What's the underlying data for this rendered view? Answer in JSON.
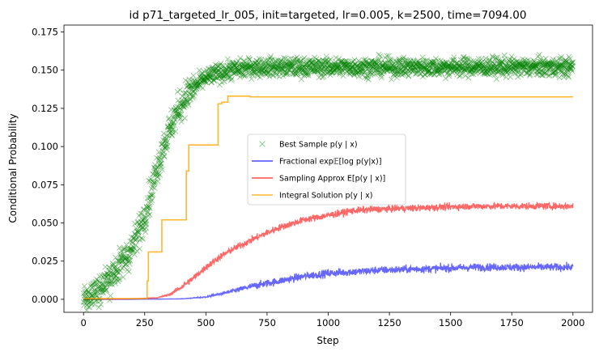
{
  "chart_data": {
    "type": "scatter",
    "title": "id p71_targeted_lr_005, init=targeted, lr=0.005, k=2500, time=7094.00",
    "xlabel": "Step",
    "ylabel": "Conditional Probability",
    "xlim": [
      -80,
      2080
    ],
    "ylim": [
      -0.0085,
      0.1795
    ],
    "x_ticks": [
      0,
      250,
      500,
      750,
      1000,
      1250,
      1500,
      1750,
      2000
    ],
    "x_tick_labels": [
      "0",
      "250",
      "500",
      "750",
      "1000",
      "1250",
      "1500",
      "1750",
      "2000"
    ],
    "y_ticks": [
      0.0,
      0.025,
      0.05,
      0.075,
      0.1,
      0.125,
      0.15,
      0.175
    ],
    "y_tick_labels": [
      "0.000",
      "0.025",
      "0.050",
      "0.075",
      "0.100",
      "0.125",
      "0.150",
      "0.175"
    ],
    "grid": false,
    "legend_position": "center",
    "series": [
      {
        "name": "Best Sample p(y | x)",
        "kind": "scatter",
        "marker": "x",
        "color": "#008000",
        "alpha": 0.45,
        "x": [
          0,
          25,
          50,
          75,
          100,
          125,
          150,
          175,
          200,
          225,
          250,
          275,
          300,
          325,
          350,
          375,
          400,
          425,
          450,
          475,
          500,
          550,
          600,
          650,
          700,
          750,
          800,
          900,
          1000,
          1100,
          1200,
          1300,
          1400,
          1500,
          1600,
          1700,
          1800,
          1900,
          2000
        ],
        "y": [
          0.002,
          0.003,
          0.005,
          0.008,
          0.013,
          0.018,
          0.022,
          0.028,
          0.034,
          0.044,
          0.055,
          0.07,
          0.085,
          0.1,
          0.11,
          0.12,
          0.128,
          0.134,
          0.138,
          0.142,
          0.145,
          0.148,
          0.15,
          0.151,
          0.152,
          0.152,
          0.152,
          0.152,
          0.152,
          0.152,
          0.152,
          0.152,
          0.152,
          0.152,
          0.152,
          0.152,
          0.152,
          0.152,
          0.152
        ],
        "noise": 0.006,
        "samples": 2000
      },
      {
        "name": "Fractional exp𝔼[log p(y|x)]",
        "kind": "line",
        "color": "#0000ff",
        "alpha": 0.6,
        "x": [
          0,
          200,
          400,
          500,
          600,
          700,
          800,
          900,
          1000,
          1200,
          1400,
          1600,
          1800,
          2000
        ],
        "y": [
          0.0,
          0.0,
          0.0003,
          0.0015,
          0.005,
          0.009,
          0.012,
          0.015,
          0.017,
          0.019,
          0.02,
          0.021,
          0.021,
          0.021
        ],
        "noise": 0.0025
      },
      {
        "name": "Sampling Approx E[p(y | x)]",
        "kind": "line",
        "color": "#ff0000",
        "alpha": 0.6,
        "x": [
          0,
          200,
          300,
          350,
          400,
          450,
          500,
          550,
          600,
          700,
          800,
          900,
          1000,
          1100,
          1200,
          1400,
          1600,
          1800,
          2000
        ],
        "y": [
          0.0,
          0.0003,
          0.001,
          0.003,
          0.008,
          0.014,
          0.021,
          0.027,
          0.032,
          0.04,
          0.047,
          0.052,
          0.055,
          0.058,
          0.059,
          0.06,
          0.061,
          0.061,
          0.061
        ],
        "noise": 0.0022
      },
      {
        "name": "Integral Solution p(y | x)",
        "kind": "step",
        "color": "#ffa500",
        "alpha": 0.8,
        "x": [
          0,
          255,
          260,
          265,
          320,
          420,
          430,
          550,
          565,
          590,
          680,
          2000
        ],
        "y": [
          0.0005,
          0.0005,
          0.012,
          0.031,
          0.052,
          0.084,
          0.101,
          0.128,
          0.129,
          0.133,
          0.1325,
          0.1325
        ]
      }
    ]
  }
}
